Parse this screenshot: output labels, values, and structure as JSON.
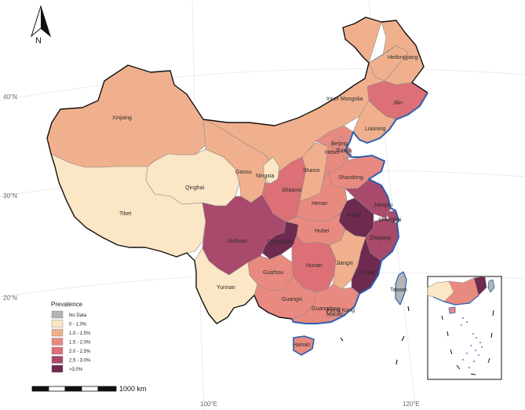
{
  "legend": {
    "title": "Prevalence",
    "items": [
      {
        "label": "No Data",
        "color": "#b5b5b5"
      },
      {
        "label": "0 - 1.0%",
        "color": "#fbe6c5"
      },
      {
        "label": "1.0 - 1.5%",
        "color": "#f1b08d"
      },
      {
        "label": "1.5 - 2.0%",
        "color": "#e98a80"
      },
      {
        "label": "2.0 - 2.5%",
        "color": "#dc7076"
      },
      {
        "label": "2.5 - 3.0%",
        "color": "#a9496b"
      },
      {
        "label": ">3.0%",
        "color": "#6e2a4f"
      }
    ]
  },
  "scale_bar": {
    "label": "1000 km"
  },
  "north_arrow": {
    "label": "N"
  },
  "graticule": {
    "lat_labels": [
      "40°N",
      "30°N",
      "20°N"
    ],
    "lon_labels": [
      "100°E",
      "120°E"
    ]
  },
  "regions": [
    {
      "name": "Heilongjiang",
      "class": "1.0 - 1.5%",
      "color": "#f1b08d"
    },
    {
      "name": "Jilin",
      "class": "2.0 - 2.5%",
      "color": "#dc7076"
    },
    {
      "name": "Liaoning",
      "class": "1.0 - 1.5%",
      "color": "#f1b08d"
    },
    {
      "name": "Inner Mongolia",
      "class": "1.0 - 1.5%",
      "color": "#f1b08d"
    },
    {
      "name": "Xinjiang",
      "class": "1.0 - 1.5%",
      "color": "#f1b08d"
    },
    {
      "name": "Gansu",
      "class": "1.0 - 1.5%",
      "color": "#f1b08d"
    },
    {
      "name": "Ningxia",
      "class": "0 - 1.0%",
      "color": "#fbe6c5"
    },
    {
      "name": "Qinghai",
      "class": "0 - 1.0%",
      "color": "#fbe6c5"
    },
    {
      "name": "Tibet",
      "class": "0 - 1.0%",
      "color": "#fbe6c5"
    },
    {
      "name": "Beijing",
      "class": "1.5 - 2.0%",
      "color": "#e98a80"
    },
    {
      "name": "Tianjin",
      "class": "1.5 - 2.0%",
      "color": "#e98a80"
    },
    {
      "name": "Hebei",
      "class": "1.5 - 2.0%",
      "color": "#e98a80"
    },
    {
      "name": "Shanxi",
      "class": "1.0 - 1.5%",
      "color": "#f1b08d"
    },
    {
      "name": "Shaanxi",
      "class": "2.0 - 2.5%",
      "color": "#dc7076"
    },
    {
      "name": "Shandong",
      "class": "1.5 - 2.0%",
      "color": "#e98a80"
    },
    {
      "name": "Henan",
      "class": "1.5 - 2.0%",
      "color": "#e98a80"
    },
    {
      "name": "Jiangsu",
      "class": "2.5 - 3.0%",
      "color": "#a9496b"
    },
    {
      "name": "Anhui",
      "class": ">3.0%",
      "color": "#6e2a4f"
    },
    {
      "name": "Shanghai",
      "class": "2.5 - 3.0%",
      "color": "#a9496b"
    },
    {
      "name": "Zhejiang",
      "class": "2.5 - 3.0%",
      "color": "#a9496b"
    },
    {
      "name": "Hubei",
      "class": "1.5 - 2.0%",
      "color": "#e98a80"
    },
    {
      "name": "Sichuan",
      "class": "2.5 - 3.0%",
      "color": "#a9496b"
    },
    {
      "name": "Chongqing",
      "class": ">3.0%",
      "color": "#6e2a4f"
    },
    {
      "name": "Hunan",
      "class": "2.0 - 2.5%",
      "color": "#dc7076"
    },
    {
      "name": "Jiangxi",
      "class": "1.0 - 1.5%",
      "color": "#f1b08d"
    },
    {
      "name": "Fujian",
      "class": ">3.0%",
      "color": "#6e2a4f"
    },
    {
      "name": "Guizhou",
      "class": "1.5 - 2.0%",
      "color": "#e98a80"
    },
    {
      "name": "Yunnan",
      "class": "0 - 1.0%",
      "color": "#fbe6c5"
    },
    {
      "name": "Guangxi",
      "class": "1.5 - 2.0%",
      "color": "#e98a80"
    },
    {
      "name": "Guangdong",
      "class": "1.5 - 2.0%",
      "color": "#e98a80"
    },
    {
      "name": "Hong Kong",
      "class": "1.5 - 2.0%",
      "color": "#e98a80"
    },
    {
      "name": "Macao",
      "class": "1.5 - 2.0%",
      "color": "#e98a80"
    },
    {
      "name": "Hainan",
      "class": "1.5 - 2.0%",
      "color": "#e98a80"
    },
    {
      "name": "Taiwan",
      "class": "No Data",
      "color": "#b5b5b5"
    }
  ],
  "colors": {
    "coast": "#2a5fb0",
    "border": "#111111"
  }
}
